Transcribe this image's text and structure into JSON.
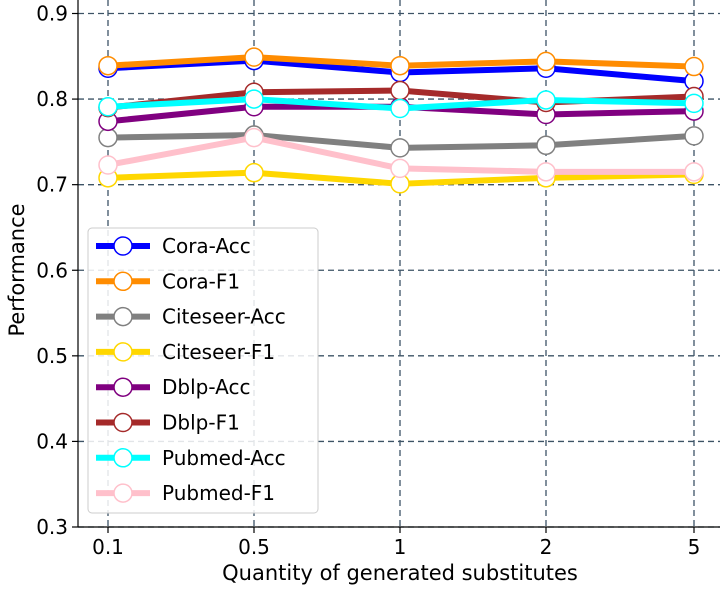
{
  "chart_data": {
    "type": "line",
    "xlabel": "Quantity of generated substitutes",
    "ylabel": "Performance",
    "categories": [
      "0.1",
      "0.5",
      "1",
      "2",
      "5"
    ],
    "ylim": [
      0.3,
      0.9
    ],
    "yticks": [
      "0.3",
      "0.4",
      "0.5",
      "0.6",
      "0.7",
      "0.8",
      "0.9"
    ],
    "grid": true,
    "legend_position": "lower-left",
    "series": [
      {
        "name": "Cora-Acc",
        "color": "#0000ff",
        "values": [
          0.836,
          0.845,
          0.831,
          0.836,
          0.821
        ]
      },
      {
        "name": "Cora-F1",
        "color": "#ff8c00",
        "values": [
          0.839,
          0.849,
          0.839,
          0.844,
          0.838
        ]
      },
      {
        "name": "Citeseer-Acc",
        "color": "#808080",
        "values": [
          0.755,
          0.758,
          0.743,
          0.746,
          0.757
        ]
      },
      {
        "name": "Citeseer-F1",
        "color": "#ffd700",
        "values": [
          0.708,
          0.714,
          0.701,
          0.708,
          0.712
        ]
      },
      {
        "name": "Dblp-Acc",
        "color": "#800080",
        "values": [
          0.774,
          0.791,
          0.791,
          0.782,
          0.786
        ]
      },
      {
        "name": "Dblp-F1",
        "color": "#a52a2a",
        "values": [
          0.79,
          0.808,
          0.81,
          0.796,
          0.803
        ]
      },
      {
        "name": "Pubmed-Acc",
        "color": "#00ffff",
        "values": [
          0.791,
          0.8,
          0.789,
          0.799,
          0.795
        ]
      },
      {
        "name": "Pubmed-F1",
        "color": "#ffc0cb",
        "values": [
          0.723,
          0.755,
          0.719,
          0.715,
          0.715
        ]
      }
    ]
  }
}
